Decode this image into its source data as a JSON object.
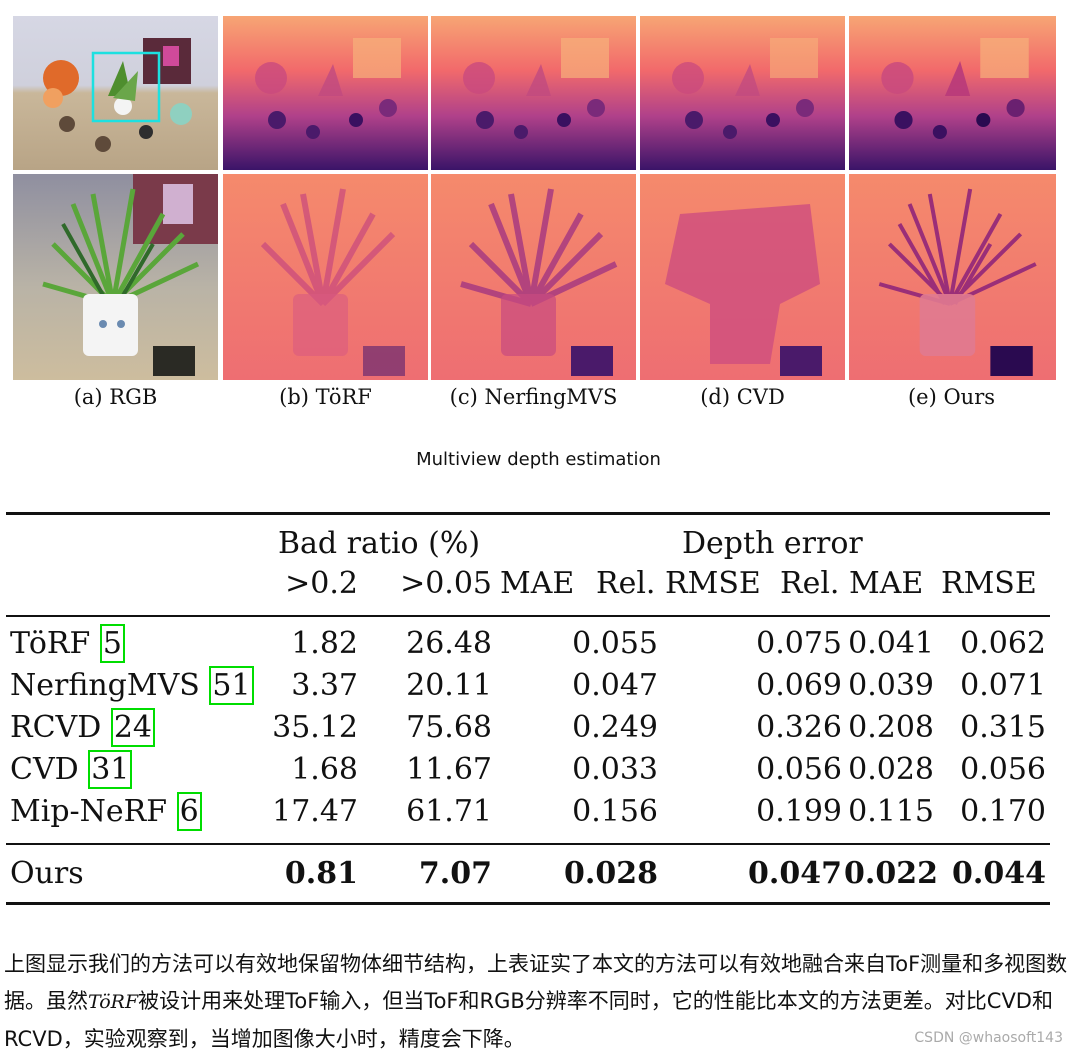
{
  "figure": {
    "subcaptions": [
      "(a) RGB",
      "(b) TöRF",
      "(c) NerfingMVS",
      "(d) CVD",
      "(e) Ours"
    ],
    "title": "Multiview depth estimation"
  },
  "table": {
    "group_headers": [
      "Bad ratio (%)",
      "Depth error"
    ],
    "column_headers": [
      ">0.2",
      ">0.05",
      "MAE",
      "Rel. RMSE",
      "Rel. MAE",
      "RMSE"
    ],
    "rows": [
      {
        "method": "TöRF",
        "cite": "5",
        "values": [
          "1.82",
          "26.48",
          "0.055",
          "0.075",
          "0.041",
          "0.062"
        ]
      },
      {
        "method": "NerfingMVS",
        "cite": "51",
        "values": [
          "3.37",
          "20.11",
          "0.047",
          "0.069",
          "0.039",
          "0.071"
        ]
      },
      {
        "method": "RCVD",
        "cite": "24",
        "values": [
          "35.12",
          "75.68",
          "0.249",
          "0.326",
          "0.208",
          "0.315"
        ]
      },
      {
        "method": "CVD",
        "cite": "31",
        "values": [
          "1.68",
          "11.67",
          "0.033",
          "0.056",
          "0.028",
          "0.056"
        ]
      },
      {
        "method": "Mip-NeRF",
        "cite": "6",
        "values": [
          "17.47",
          "61.71",
          "0.156",
          "0.199",
          "0.115",
          "0.170"
        ]
      }
    ],
    "ours": {
      "method": "Ours",
      "values": [
        "0.81",
        "7.07",
        "0.028",
        "0.047",
        "0.022",
        "0.044"
      ]
    }
  },
  "paragraph": {
    "part1": "上图显示我们的方法可以有效地保留物体细节结构，上表证实了本文的方法可以有效地融合来自ToF测量和多视图数据。虽然",
    "inline_term": "TöRF",
    "part2": "被设计用来处理ToF输入，但当ToF和RGB分辨率不同时，它的性能比本文的方法更差。对比CVD和RCVD，实验观察到，当增加图像大小时，精度会下降。"
  },
  "watermark": "CSDN @whaosoft143",
  "colors": {
    "cite_box": "#00dd00",
    "depth_far": "#fcd9a0",
    "depth_mid": "#e0607a",
    "depth_near": "#2a0f5a"
  }
}
